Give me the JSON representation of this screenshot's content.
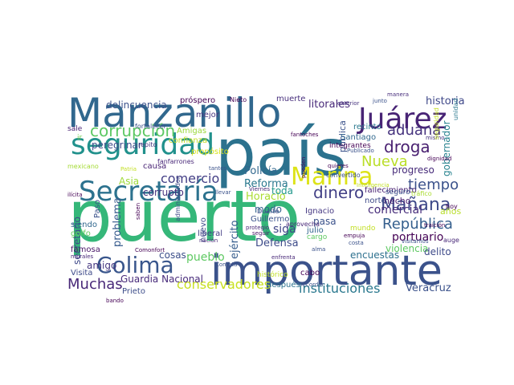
{
  "image": {
    "title": "",
    "words": [
      {
        "text": "puerto",
        "color": "#35b779"
      },
      {
        "text": "país",
        "color": "#2c728e"
      },
      {
        "text": "importante",
        "color": "#3b528b"
      },
      {
        "text": "Manzanillo",
        "color": "#31688e"
      },
      {
        "text": "seguridad",
        "color": "#21918c"
      },
      {
        "text": "Secretaría",
        "color": "#2c728e"
      },
      {
        "text": "Marina",
        "color": "#dde318"
      },
      {
        "text": "Juárez",
        "color": "#482475"
      },
      {
        "text": "Colima",
        "color": "#39568c"
      },
      {
        "text": "corrupción",
        "color": "#5cc863"
      },
      {
        "text": "droga",
        "color": "#481f70"
      },
      {
        "text": "aduana",
        "color": "#46337e"
      },
      {
        "text": "Mañana",
        "color": "#3e4a89"
      },
      {
        "text": "dinero",
        "color": "#424086"
      },
      {
        "text": "República",
        "color": "#355f8d"
      },
      {
        "text": "Nueva",
        "color": "#bade28"
      },
      {
        "text": "tiempo",
        "color": "#3b528b"
      },
      {
        "text": "comercio",
        "color": "#433e85"
      },
      {
        "text": "Muchas",
        "color": "#482878"
      },
      {
        "text": "conservadores",
        "color": "#c8e020"
      },
      {
        "text": "instituciones",
        "color": "#2a788e"
      },
      {
        "text": "pueblo",
        "color": "#5ec962"
      },
      {
        "text": "historia",
        "color": "#3f4889"
      },
      {
        "text": "portuario",
        "color": "#440154"
      },
      {
        "text": "comercial",
        "color": "#472d7b"
      },
      {
        "text": "Veracruz",
        "color": "#3b528b"
      },
      {
        "text": "Policía",
        "color": "#31688e"
      },
      {
        "text": "Reforma",
        "color": "#2a788e"
      },
      {
        "text": "Horacio",
        "color": "#aadc32"
      },
      {
        "text": "siga",
        "color": "#404688"
      },
      {
        "text": "Defensa",
        "color": "#3e4c8a"
      },
      {
        "text": "ejército",
        "color": "#365d8d"
      },
      {
        "text": "litorales",
        "color": "#482979"
      },
      {
        "text": "delincuencia",
        "color": "#3b518b"
      },
      {
        "text": "peregrinar",
        "color": "#3e4c8a"
      },
      {
        "text": "Asia",
        "color": "#9fda3a"
      },
      {
        "text": "corrupto",
        "color": "#46327e"
      },
      {
        "text": "Guardia Nacional",
        "color": "#472a7a"
      },
      {
        "text": "problema",
        "color": "#375b8d"
      },
      {
        "text": "secretario",
        "color": "#3e4989"
      },
      {
        "text": "violencia",
        "color": "#5ec962"
      },
      {
        "text": "delito",
        "color": "#3e4a89"
      },
      {
        "text": "encuestas",
        "color": "#2d708e"
      },
      {
        "text": "progreso",
        "color": "#472c7a"
      },
      {
        "text": "gobernador",
        "color": "#26828e"
      },
      {
        "text": "pasa",
        "color": "#3b528b"
      },
      {
        "text": "toda",
        "color": "#1f978b"
      },
      {
        "text": "modo",
        "color": "#33638d"
      },
      {
        "text": "cosas",
        "color": "#3c4f8a"
      },
      {
        "text": "amigo",
        "color": "#453781"
      },
      {
        "text": "pública",
        "color": "#3b528b"
      },
      {
        "text": "hecho",
        "color": "#481c6e"
      },
      {
        "text": "años",
        "color": "#b8de29"
      },
      {
        "text": "muerte",
        "color": "#472f7d"
      },
      {
        "text": "próspero",
        "color": "#440154"
      },
      {
        "text": "mejor",
        "color": "#46337e"
      },
      {
        "text": "causa",
        "color": "#482374"
      },
      {
        "text": "Visita",
        "color": "#3e4a89"
      },
      {
        "text": "famosa",
        "color": "#481668"
      },
      {
        "text": "siendo",
        "color": "#31688e"
      },
      {
        "text": "golfo",
        "color": "#65cb5e"
      },
      {
        "text": "Prieto",
        "color": "#3d4d8a"
      },
      {
        "text": "liberal",
        "color": "#433e85"
      },
      {
        "text": "julio",
        "color": "#32658e"
      },
      {
        "text": "cabo",
        "color": "#440154"
      },
      {
        "text": "después",
        "color": "#2c728e"
      },
      {
        "text": "nuevo",
        "color": "#3e4c8a"
      },
      {
        "text": "Paso",
        "color": "#3b528b"
      },
      {
        "text": "Ignacio",
        "color": "#453882"
      },
      {
        "text": "Guillermo",
        "color": "#3b528b"
      },
      {
        "text": "Amigas",
        "color": "#9bd93c"
      },
      {
        "text": "confianza",
        "color": "#c2df23"
      },
      {
        "text": "propósito",
        "color": "#d8e219"
      },
      {
        "text": "fallecimiento",
        "color": "#482173"
      },
      {
        "text": "norte",
        "color": "#3e4a89"
      },
      {
        "text": "Santiago",
        "color": "#31688e"
      },
      {
        "text": "recinto",
        "color": "#2a788e"
      },
      {
        "text": "integrantes",
        "color": "#440154"
      },
      {
        "text": "sale",
        "color": "#482173"
      },
      {
        "text": "ir",
        "color": "#75d054"
      },
      {
        "text": "fortalecer",
        "color": "#3b528b"
      },
      {
        "text": "repito",
        "color": "#46337e"
      },
      {
        "text": "Nieto",
        "color": "#440154"
      },
      {
        "text": "fanfarrones",
        "color": "#482878"
      },
      {
        "text": "administrador",
        "color": "#3e4a89"
      },
      {
        "text": "mexicano",
        "color": "#a5db36"
      },
      {
        "text": "histórico",
        "color": "#c0df25"
      },
      {
        "text": "mundo",
        "color": "#c2df23"
      },
      {
        "text": "cargo",
        "color": "#5ec962"
      },
      {
        "text": "seguro",
        "color": "#3b528b"
      },
      {
        "text": "hoy",
        "color": "#440154"
      },
      {
        "text": "tráfico",
        "color": "#aadc32"
      },
      {
        "text": "auge",
        "color": "#482878"
      },
      {
        "text": "Duarte",
        "color": "#3e4a89"
      },
      {
        "text": "aprovecha",
        "color": "#482878"
      },
      {
        "text": "convertido",
        "color": "#3b528b"
      },
      {
        "text": "unidad",
        "color": "#2a788e"
      },
      {
        "text": "mismo",
        "color": "#46337e"
      },
      {
        "text": "dignidad",
        "color": "#440154"
      },
      {
        "text": "manera",
        "color": "#472d7b"
      },
      {
        "text": "exterior",
        "color": "#46337e"
      },
      {
        "text": "junto",
        "color": "#3b528b"
      },
      {
        "text": "fantoches",
        "color": "#440154"
      },
      {
        "text": "Publicado",
        "color": "#3b528b"
      },
      {
        "text": "pueden",
        "color": "#440154"
      },
      {
        "text": "seguir",
        "color": "#481668"
      },
      {
        "text": "costa",
        "color": "#3b528b"
      },
      {
        "text": "Viernes",
        "color": "#482878"
      },
      {
        "text": "Cometa",
        "color": "#3b528b"
      },
      {
        "text": "Comonfort",
        "color": "#440154"
      },
      {
        "text": "protegio",
        "color": "#482878"
      },
      {
        "text": "alma",
        "color": "#3b528b"
      },
      {
        "text": "quieres",
        "color": "#440154"
      },
      {
        "text": "llevar",
        "color": "#3b528b"
      },
      {
        "text": "ilícita",
        "color": "#440154"
      },
      {
        "text": "morales",
        "color": "#482878"
      },
      {
        "text": "bando",
        "color": "#440154"
      },
      {
        "text": "Patria",
        "color": "#c2df23"
      },
      {
        "text": "tantos",
        "color": "#3b528b"
      },
      {
        "text": "nación",
        "color": "#482878"
      },
      {
        "text": "Inteligencia",
        "color": "#c2df23"
      },
      {
        "text": "saben",
        "color": "#440154"
      },
      {
        "text": "recordar",
        "color": "#3b528b"
      },
      {
        "text": "empuja",
        "color": "#440154"
      },
      {
        "text": "enfrenta",
        "color": "#482878"
      },
      {
        "text": "seguridad",
        "color": "#c2df23"
      },
      {
        "text": "traición",
        "color": "#440154"
      },
      {
        "text": "visitamos",
        "color": "#3b528b"
      }
    ]
  }
}
